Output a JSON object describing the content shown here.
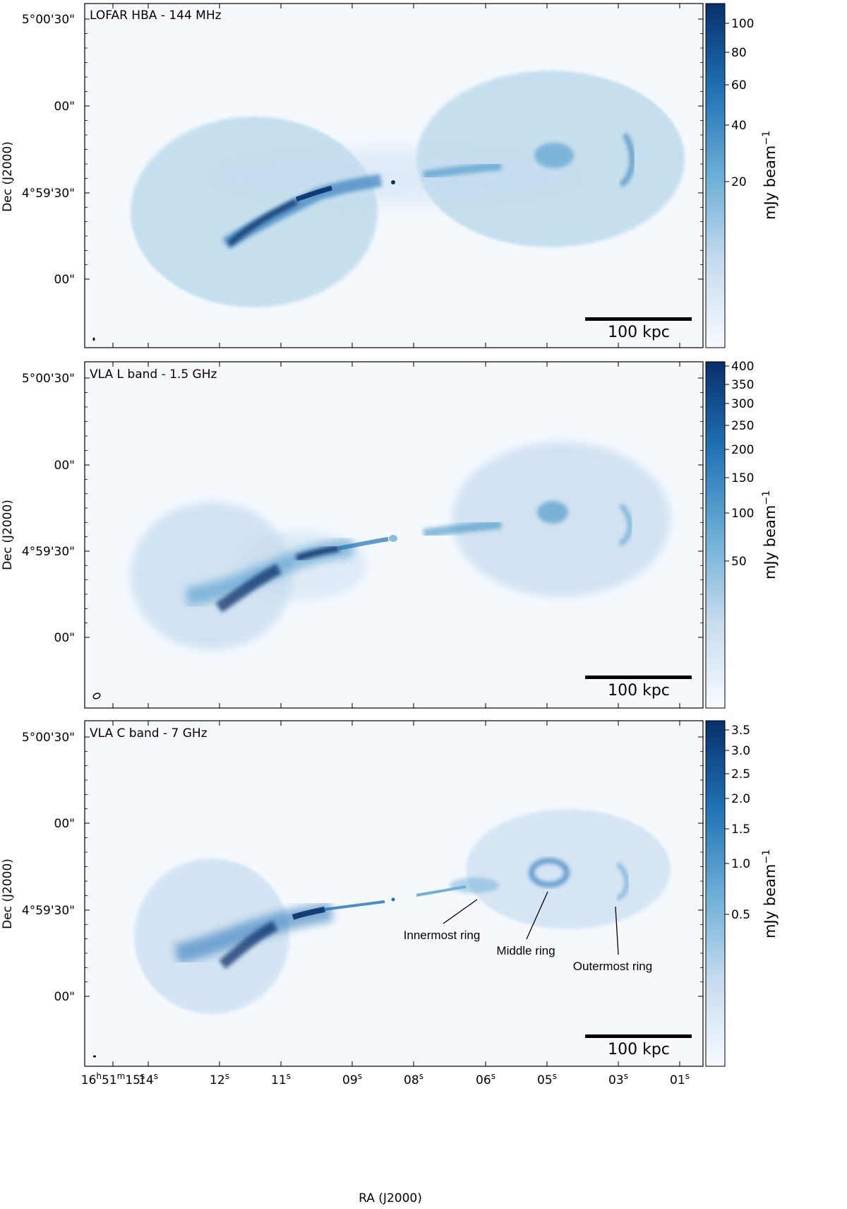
{
  "figure": {
    "y_axis_label": "Dec (J2000)",
    "x_axis_label": "RA (J2000)",
    "dec_ticks": [
      "5°00'30\"",
      "00\"",
      "4°59'30\"",
      "00\""
    ],
    "ra_ticks": [
      {
        "h": "16",
        "m": "51",
        "s": "15",
        "first": true
      },
      {
        "s": "14"
      },
      {
        "s": "12"
      },
      {
        "s": "11"
      },
      {
        "s": "09"
      },
      {
        "s": "08"
      },
      {
        "s": "06"
      },
      {
        "s": "05"
      },
      {
        "s": "03"
      },
      {
        "s": "01"
      }
    ],
    "ra_suffix": "s"
  },
  "panels": [
    {
      "title": "LOFAR HBA - 144 MHz",
      "colorbar_label": "mJy beam",
      "colorbar_exponent": "−1",
      "colorbar_ticks": [
        "100",
        "80",
        "60",
        "40",
        "20"
      ],
      "scalebar_label": "100 kpc"
    },
    {
      "title": "VLA L band - 1.5 GHz",
      "colorbar_label": "mJy beam",
      "colorbar_exponent": "−1",
      "colorbar_ticks": [
        "400",
        "350",
        "300",
        "250",
        "200",
        "150",
        "100",
        "50"
      ],
      "scalebar_label": "100 kpc"
    },
    {
      "title": "VLA C band - 7 GHz",
      "colorbar_label": "mJy beam",
      "colorbar_exponent": "−1",
      "colorbar_ticks": [
        "3.5",
        "3.0",
        "2.5",
        "2.0",
        "1.5",
        "1.0",
        "0.5"
      ],
      "scalebar_label": "100 kpc",
      "annotations": [
        "Innermost ring",
        "Middle ring",
        "Outermost ring"
      ]
    }
  ],
  "colors": {
    "background": "#f5f9fe",
    "dark": "#08306b",
    "mid": "#2171b5",
    "light": "#9ecae1"
  }
}
